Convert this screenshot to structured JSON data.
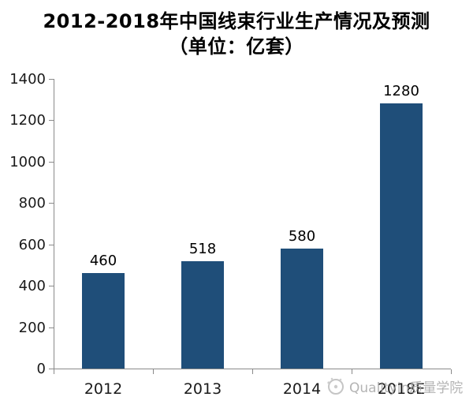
{
  "title": {
    "line1": "2012-2018年中国线束行业生产情况及预测",
    "line2": "（单位：亿套）"
  },
  "watermark": {
    "text": "Qualityin质量学院",
    "icon": "qualityin-logo-icon"
  },
  "colors": {
    "bar": "#1F4E79",
    "axis": "#8a8a8a",
    "text": "#1a1a1a",
    "watermark": "#a8a8a8",
    "background": "#ffffff"
  },
  "chart_data": {
    "type": "bar",
    "title": "2012-2018年中国线束行业生产情况及预测（单位：亿套）",
    "categories": [
      "2012",
      "2013",
      "2014",
      "2018E"
    ],
    "values": [
      460,
      518,
      580,
      1280
    ],
    "data_labels": [
      "460",
      "518",
      "580",
      "1280"
    ],
    "xlabel": "",
    "ylabel": "",
    "ylim": [
      0,
      1400
    ],
    "yticks": [
      0,
      200,
      400,
      600,
      800,
      1000,
      1200,
      1400
    ],
    "grid": false,
    "legend": "none",
    "bar_color": "#1F4E79",
    "axis_color": "#8a8a8a"
  }
}
